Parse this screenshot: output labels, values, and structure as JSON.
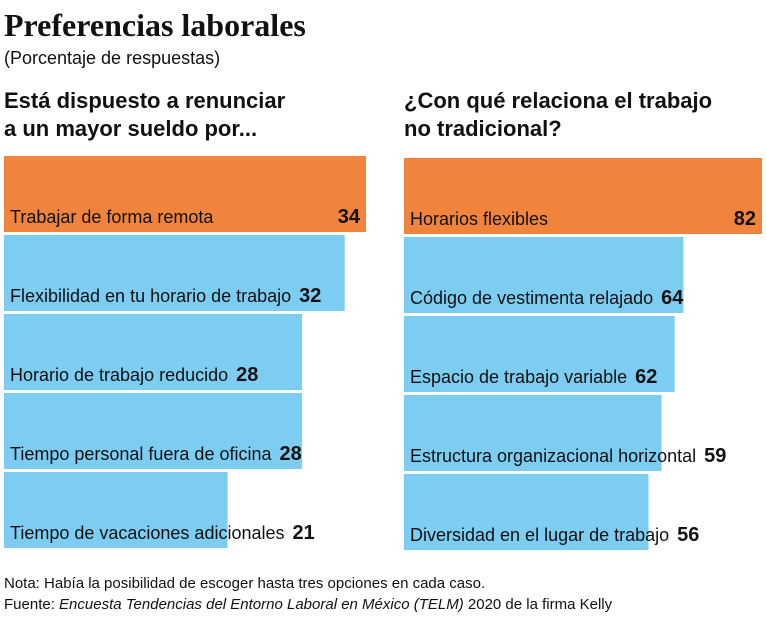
{
  "title": "Preferencias laborales",
  "subtitle": "(Porcentaje de respuestas)",
  "chart_data": [
    {
      "type": "bar",
      "orientation": "horizontal",
      "title": [
        "Está dispuesto a renunciar",
        "a un mayor sueldo por..."
      ],
      "categories": [
        "Trabajar de forma remota",
        "Flexibilidad en tu horario de trabajo",
        "Horario de trabajo reducido",
        "Tiempo personal fuera de oficina",
        "Tiempo de vacaciones adicionales"
      ],
      "values": [
        34,
        32,
        28,
        28,
        21
      ],
      "colors": [
        "#f0843c",
        "#7dcdf3",
        "#7dcdf3",
        "#7dcdf3",
        "#7dcdf3"
      ]
    },
    {
      "type": "bar",
      "orientation": "horizontal",
      "title": [
        "¿Con qué relaciona el trabajo",
        "no tradicional?"
      ],
      "categories": [
        "Horarios flexibles",
        "Código de vestimenta relajado",
        "Espacio de trabajo variable",
        "Estructura organizacional horizontal",
        "Diversidad en el lugar de trabajo"
      ],
      "values": [
        82,
        64,
        62,
        59,
        56
      ],
      "colors": [
        "#f0843c",
        "#7dcdf3",
        "#7dcdf3",
        "#7dcdf3",
        "#7dcdf3"
      ]
    }
  ],
  "note": "Nota: Había la posibilidad de escoger hasta  tres opciones en cada caso.",
  "source": {
    "label": "Fuente:",
    "italic": "Encuesta Tendencias del Entorno Laboral en México (TELM)",
    "rest": "2020 de la firma Kelly"
  }
}
